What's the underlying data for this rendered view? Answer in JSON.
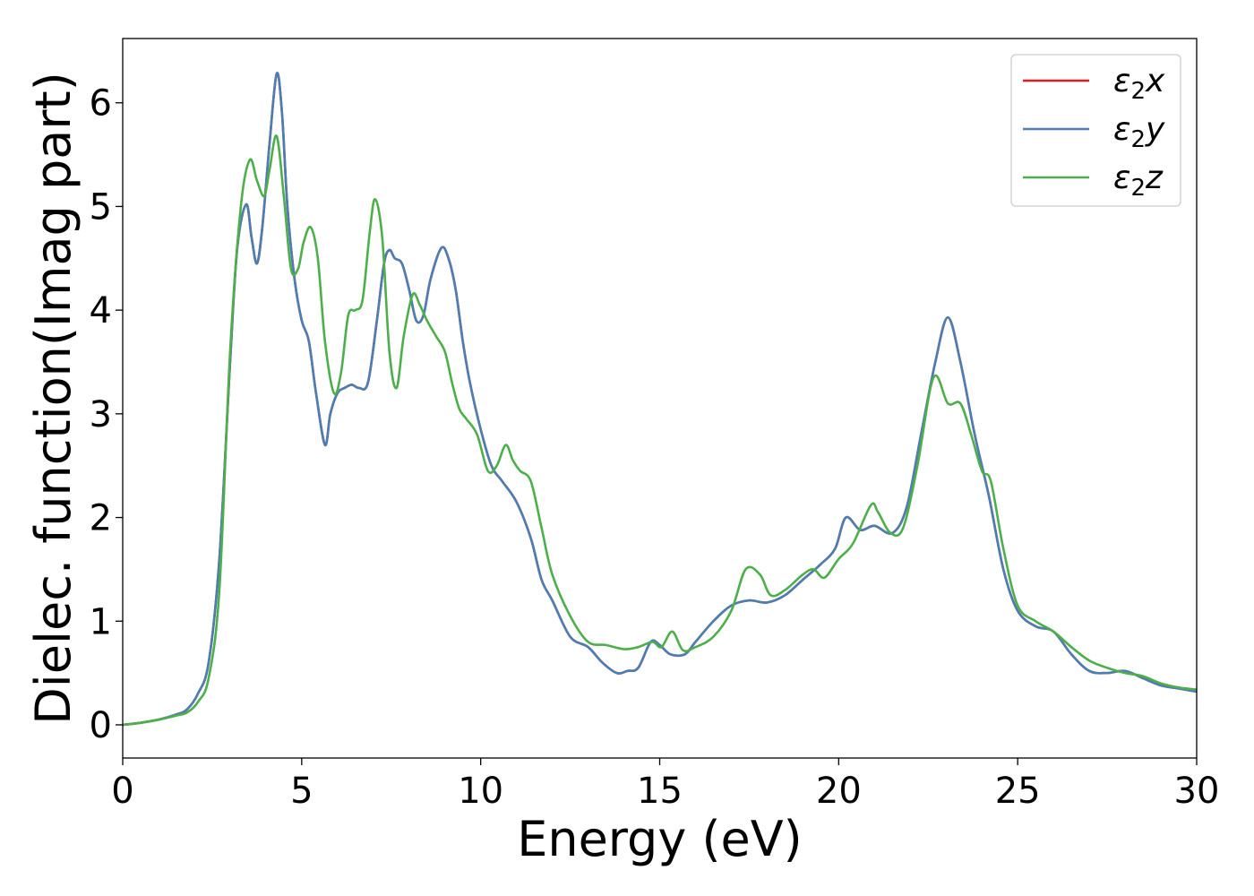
{
  "chart_data": {
    "type": "line",
    "xlabel": "Energy (eV)",
    "ylabel": "Dielec. function(Imag part)",
    "xlim": [
      0,
      30
    ],
    "ylim": [
      -0.32,
      6.62
    ],
    "xticks": [
      0,
      5,
      10,
      15,
      20,
      25,
      30
    ],
    "yticks": [
      0,
      1,
      2,
      3,
      4,
      5,
      6
    ],
    "grid": false,
    "legend_position": "top-right",
    "series": [
      {
        "name": "ε2x",
        "legend_main": "ε",
        "legend_sub": "2",
        "legend_var": "x",
        "color": "#e41a1c",
        "x": [
          0,
          0.5,
          1.0,
          1.5,
          1.8,
          2.1,
          2.4,
          2.7,
          3.0,
          3.2,
          3.45,
          3.6,
          3.75,
          3.9,
          4.1,
          4.3,
          4.45,
          4.6,
          4.8,
          5.0,
          5.2,
          5.4,
          5.65,
          5.8,
          6.0,
          6.2,
          6.4,
          6.6,
          6.85,
          7.1,
          7.3,
          7.45,
          7.6,
          7.8,
          8.0,
          8.2,
          8.4,
          8.6,
          8.9,
          9.1,
          9.3,
          9.5,
          9.7,
          10.0,
          10.3,
          10.6,
          11.0,
          11.4,
          11.7,
          12.0,
          12.5,
          13.0,
          13.4,
          13.8,
          14.1,
          14.4,
          14.75,
          15.0,
          15.3,
          15.7,
          16.0,
          16.5,
          17.0,
          17.5,
          18.0,
          18.5,
          19.0,
          19.5,
          19.9,
          20.2,
          20.6,
          21.0,
          21.5,
          21.9,
          22.3,
          22.7,
          23.05,
          23.4,
          23.8,
          24.2,
          24.6,
          25.0,
          25.5,
          26.0,
          26.5,
          27.0,
          27.5,
          28.0,
          28.5,
          29.0,
          29.5,
          30.0
        ],
        "values": [
          0.0,
          0.02,
          0.05,
          0.1,
          0.15,
          0.3,
          0.6,
          1.6,
          3.5,
          4.6,
          5.02,
          4.7,
          4.45,
          4.8,
          5.6,
          6.28,
          5.9,
          5.0,
          4.3,
          3.9,
          3.7,
          3.2,
          2.7,
          3.0,
          3.2,
          3.25,
          3.28,
          3.25,
          3.3,
          3.9,
          4.45,
          4.58,
          4.5,
          4.45,
          4.2,
          3.9,
          3.95,
          4.3,
          4.6,
          4.5,
          4.2,
          3.7,
          3.3,
          2.85,
          2.5,
          2.35,
          2.15,
          1.8,
          1.4,
          1.2,
          0.85,
          0.75,
          0.6,
          0.5,
          0.52,
          0.55,
          0.8,
          0.77,
          0.68,
          0.68,
          0.8,
          1.0,
          1.15,
          1.2,
          1.18,
          1.25,
          1.4,
          1.55,
          1.7,
          2.0,
          1.88,
          1.92,
          1.85,
          2.1,
          2.8,
          3.5,
          3.93,
          3.5,
          2.8,
          2.2,
          1.5,
          1.1,
          0.95,
          0.9,
          0.68,
          0.52,
          0.5,
          0.52,
          0.45,
          0.38,
          0.35,
          0.32
        ]
      },
      {
        "name": "ε2y",
        "legend_main": "ε",
        "legend_sub": "2",
        "legend_var": "y",
        "color": "#4a7fb5",
        "x": [
          0,
          0.5,
          1.0,
          1.5,
          1.8,
          2.1,
          2.4,
          2.7,
          3.0,
          3.2,
          3.45,
          3.6,
          3.75,
          3.9,
          4.1,
          4.3,
          4.45,
          4.6,
          4.8,
          5.0,
          5.2,
          5.4,
          5.65,
          5.8,
          6.0,
          6.2,
          6.4,
          6.6,
          6.85,
          7.1,
          7.3,
          7.45,
          7.6,
          7.8,
          8.0,
          8.2,
          8.4,
          8.6,
          8.9,
          9.1,
          9.3,
          9.5,
          9.7,
          10.0,
          10.3,
          10.6,
          11.0,
          11.4,
          11.7,
          12.0,
          12.5,
          13.0,
          13.4,
          13.8,
          14.1,
          14.4,
          14.75,
          15.0,
          15.3,
          15.7,
          16.0,
          16.5,
          17.0,
          17.5,
          18.0,
          18.5,
          19.0,
          19.5,
          19.9,
          20.2,
          20.6,
          21.0,
          21.5,
          21.9,
          22.3,
          22.7,
          23.05,
          23.4,
          23.8,
          24.2,
          24.6,
          25.0,
          25.5,
          26.0,
          26.5,
          27.0,
          27.5,
          28.0,
          28.5,
          29.0,
          29.5,
          30.0
        ],
        "values": [
          0.0,
          0.02,
          0.05,
          0.1,
          0.15,
          0.3,
          0.6,
          1.6,
          3.5,
          4.6,
          5.02,
          4.7,
          4.45,
          4.8,
          5.6,
          6.28,
          5.9,
          5.0,
          4.3,
          3.9,
          3.7,
          3.2,
          2.7,
          3.0,
          3.2,
          3.25,
          3.28,
          3.25,
          3.3,
          3.9,
          4.45,
          4.58,
          4.5,
          4.45,
          4.2,
          3.9,
          3.95,
          4.3,
          4.6,
          4.5,
          4.2,
          3.7,
          3.3,
          2.85,
          2.5,
          2.35,
          2.15,
          1.8,
          1.4,
          1.2,
          0.85,
          0.75,
          0.6,
          0.5,
          0.52,
          0.55,
          0.8,
          0.77,
          0.68,
          0.68,
          0.8,
          1.0,
          1.15,
          1.2,
          1.18,
          1.25,
          1.4,
          1.55,
          1.7,
          2.0,
          1.88,
          1.92,
          1.85,
          2.1,
          2.8,
          3.5,
          3.93,
          3.5,
          2.8,
          2.2,
          1.5,
          1.1,
          0.95,
          0.9,
          0.68,
          0.52,
          0.5,
          0.52,
          0.45,
          0.38,
          0.35,
          0.32
        ]
      },
      {
        "name": "ε2z",
        "legend_main": "ε",
        "legend_sub": "2",
        "legend_var": "z",
        "color": "#4daf4a",
        "x": [
          0,
          0.5,
          1.0,
          1.5,
          1.8,
          2.1,
          2.4,
          2.7,
          3.0,
          3.3,
          3.55,
          3.75,
          3.95,
          4.1,
          4.3,
          4.5,
          4.7,
          4.9,
          5.05,
          5.25,
          5.45,
          5.65,
          5.9,
          6.1,
          6.3,
          6.5,
          6.7,
          6.9,
          7.05,
          7.25,
          7.45,
          7.65,
          7.85,
          8.1,
          8.3,
          8.5,
          8.75,
          9.0,
          9.2,
          9.4,
          9.6,
          9.9,
          10.2,
          10.45,
          10.7,
          10.9,
          11.1,
          11.4,
          11.7,
          12.0,
          12.5,
          13.0,
          13.5,
          14.0,
          14.4,
          14.8,
          15.05,
          15.35,
          15.65,
          16.0,
          16.5,
          17.0,
          17.4,
          17.8,
          18.1,
          18.5,
          19.0,
          19.3,
          19.6,
          20.0,
          20.4,
          20.9,
          21.1,
          21.45,
          21.8,
          22.2,
          22.65,
          23.05,
          23.4,
          23.7,
          24.0,
          24.25,
          24.6,
          25.0,
          25.5,
          26.0,
          26.5,
          27.0,
          27.5,
          28.0,
          28.5,
          29.0,
          29.5,
          30.0
        ],
        "values": [
          0.0,
          0.02,
          0.05,
          0.09,
          0.12,
          0.22,
          0.45,
          1.3,
          3.6,
          5.0,
          5.45,
          5.25,
          5.1,
          5.35,
          5.68,
          5.1,
          4.4,
          4.4,
          4.65,
          4.8,
          4.5,
          3.7,
          3.2,
          3.4,
          3.95,
          4.0,
          4.1,
          4.75,
          5.07,
          4.7,
          3.6,
          3.25,
          3.75,
          4.15,
          4.05,
          3.9,
          3.75,
          3.6,
          3.3,
          3.05,
          2.95,
          2.8,
          2.45,
          2.5,
          2.7,
          2.55,
          2.45,
          2.35,
          1.9,
          1.45,
          1.05,
          0.8,
          0.77,
          0.73,
          0.75,
          0.8,
          0.75,
          0.9,
          0.72,
          0.75,
          0.85,
          1.1,
          1.5,
          1.45,
          1.25,
          1.3,
          1.45,
          1.5,
          1.42,
          1.6,
          1.75,
          2.12,
          2.05,
          1.85,
          1.9,
          2.5,
          3.35,
          3.1,
          3.1,
          2.8,
          2.45,
          2.35,
          1.7,
          1.15,
          1.0,
          0.9,
          0.75,
          0.62,
          0.55,
          0.5,
          0.47,
          0.4,
          0.36,
          0.34
        ]
      }
    ]
  }
}
